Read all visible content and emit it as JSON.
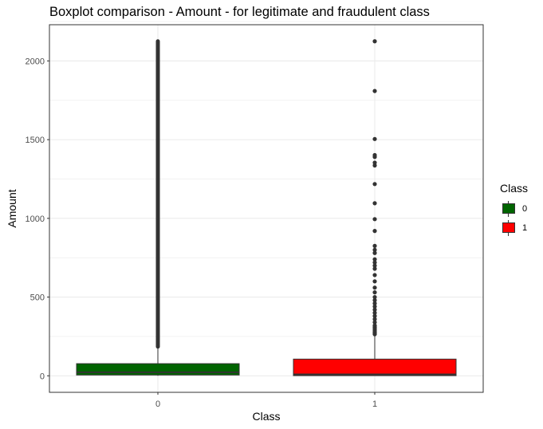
{
  "chart_data": {
    "type": "box",
    "title": "Boxplot comparison - Amount - for legitimate and fraudulent class",
    "xlabel": "Class",
    "ylabel": "Amount",
    "categories": [
      "0",
      "1"
    ],
    "ylim": [
      -105,
      2230
    ],
    "yticks": [
      0,
      500,
      1000,
      1500,
      2000
    ],
    "grid": true,
    "boxes": [
      {
        "category": "0",
        "fill": "#006400",
        "q1": 5,
        "median": 22,
        "q3": 77,
        "whisker_low": 0,
        "whisker_high": 185,
        "outliers_range": [
          185,
          2125
        ]
      },
      {
        "category": "1",
        "fill": "#ff0000",
        "q1": 1,
        "median": 9,
        "q3": 106,
        "whisker_low": 0,
        "whisker_high": 260,
        "outliers": [
          264,
          272,
          280,
          290,
          300,
          310,
          320,
          340,
          360,
          380,
          400,
          420,
          440,
          460,
          480,
          500,
          530,
          560,
          600,
          640,
          680,
          700,
          720,
          740,
          780,
          800,
          825,
          920,
          995,
          1096,
          1218,
          1336,
          1354,
          1390,
          1402,
          1504,
          1809,
          2125
        ]
      }
    ],
    "legend": {
      "title": "Class",
      "position": "right",
      "entries": [
        {
          "label": "0",
          "color": "#006400"
        },
        {
          "label": "1",
          "color": "#ff0000"
        }
      ]
    }
  }
}
